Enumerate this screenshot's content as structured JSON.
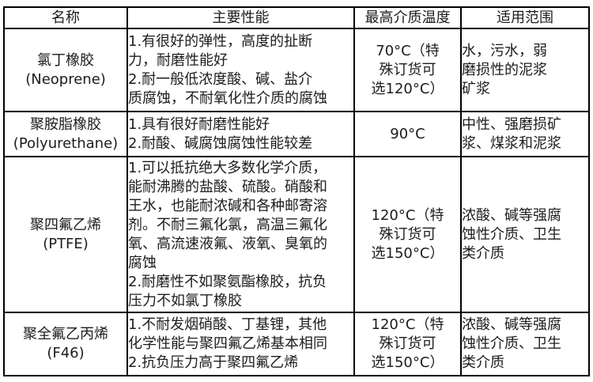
{
  "table": {
    "columns": [
      {
        "label": "名称"
      },
      {
        "label": "主要性能"
      },
      {
        "label": "最高介质温度"
      },
      {
        "label": "适用范围"
      }
    ],
    "rows": [
      {
        "name": "氯丁橡胶\n(Neoprene)",
        "performance": "1.有很好的弹性，高度的扯断\n力，耐磨性能好\n2.耐一般低浓度酸、碱、盐介\n质腐蚀，不耐氧化性介质的腐蚀",
        "max_temperature": "70°C（特\n殊订货可\n选120°C）",
        "application": "水，污水，弱\n磨损性的泥浆\n矿浆"
      },
      {
        "name": "聚胺脂橡胶\n(Polyurethane)",
        "performance": "1.具有很好耐磨性能好\n2.耐酸、碱腐蚀腐蚀性能较差",
        "max_temperature": "90°C",
        "application": "中性、强磨损矿\n浆、煤浆和泥浆"
      },
      {
        "name": "聚四氟乙烯\n(PTFE)",
        "performance": "1.可以抵抗绝大多数化学介质，\n能耐沸腾的盐酸、硫酸。硝酸和\n王水，也能耐浓碱和各种邮寄溶\n剂。不耐三氟化氯，高温三氟化\n氧、高流速液氟、液氧、臭氧的\n腐蚀\n2.耐磨性不如聚氨酯橡胶，抗负\n压力不如氯丁橡胶",
        "max_temperature": "120°C（特\n殊订货可\n选150°C）",
        "application": "浓酸、碱等强腐\n蚀性介质、卫生\n类介质"
      },
      {
        "name": "聚全氟乙丙烯\n(F46)",
        "performance": "1.不耐发烟硝酸、丁基锂，其他\n化学性能与聚四氟乙烯基本相同\n2.抗负压力高于聚四氟乙烯",
        "max_temperature": "120°C（特\n殊订货可\n选150°C）",
        "application": "浓酸、碱等强腐\n蚀性介质、卫生\n类介质"
      }
    ]
  },
  "colors": {
    "border": "#000000",
    "text": "#1c1c1c",
    "background": "#ffffff"
  }
}
